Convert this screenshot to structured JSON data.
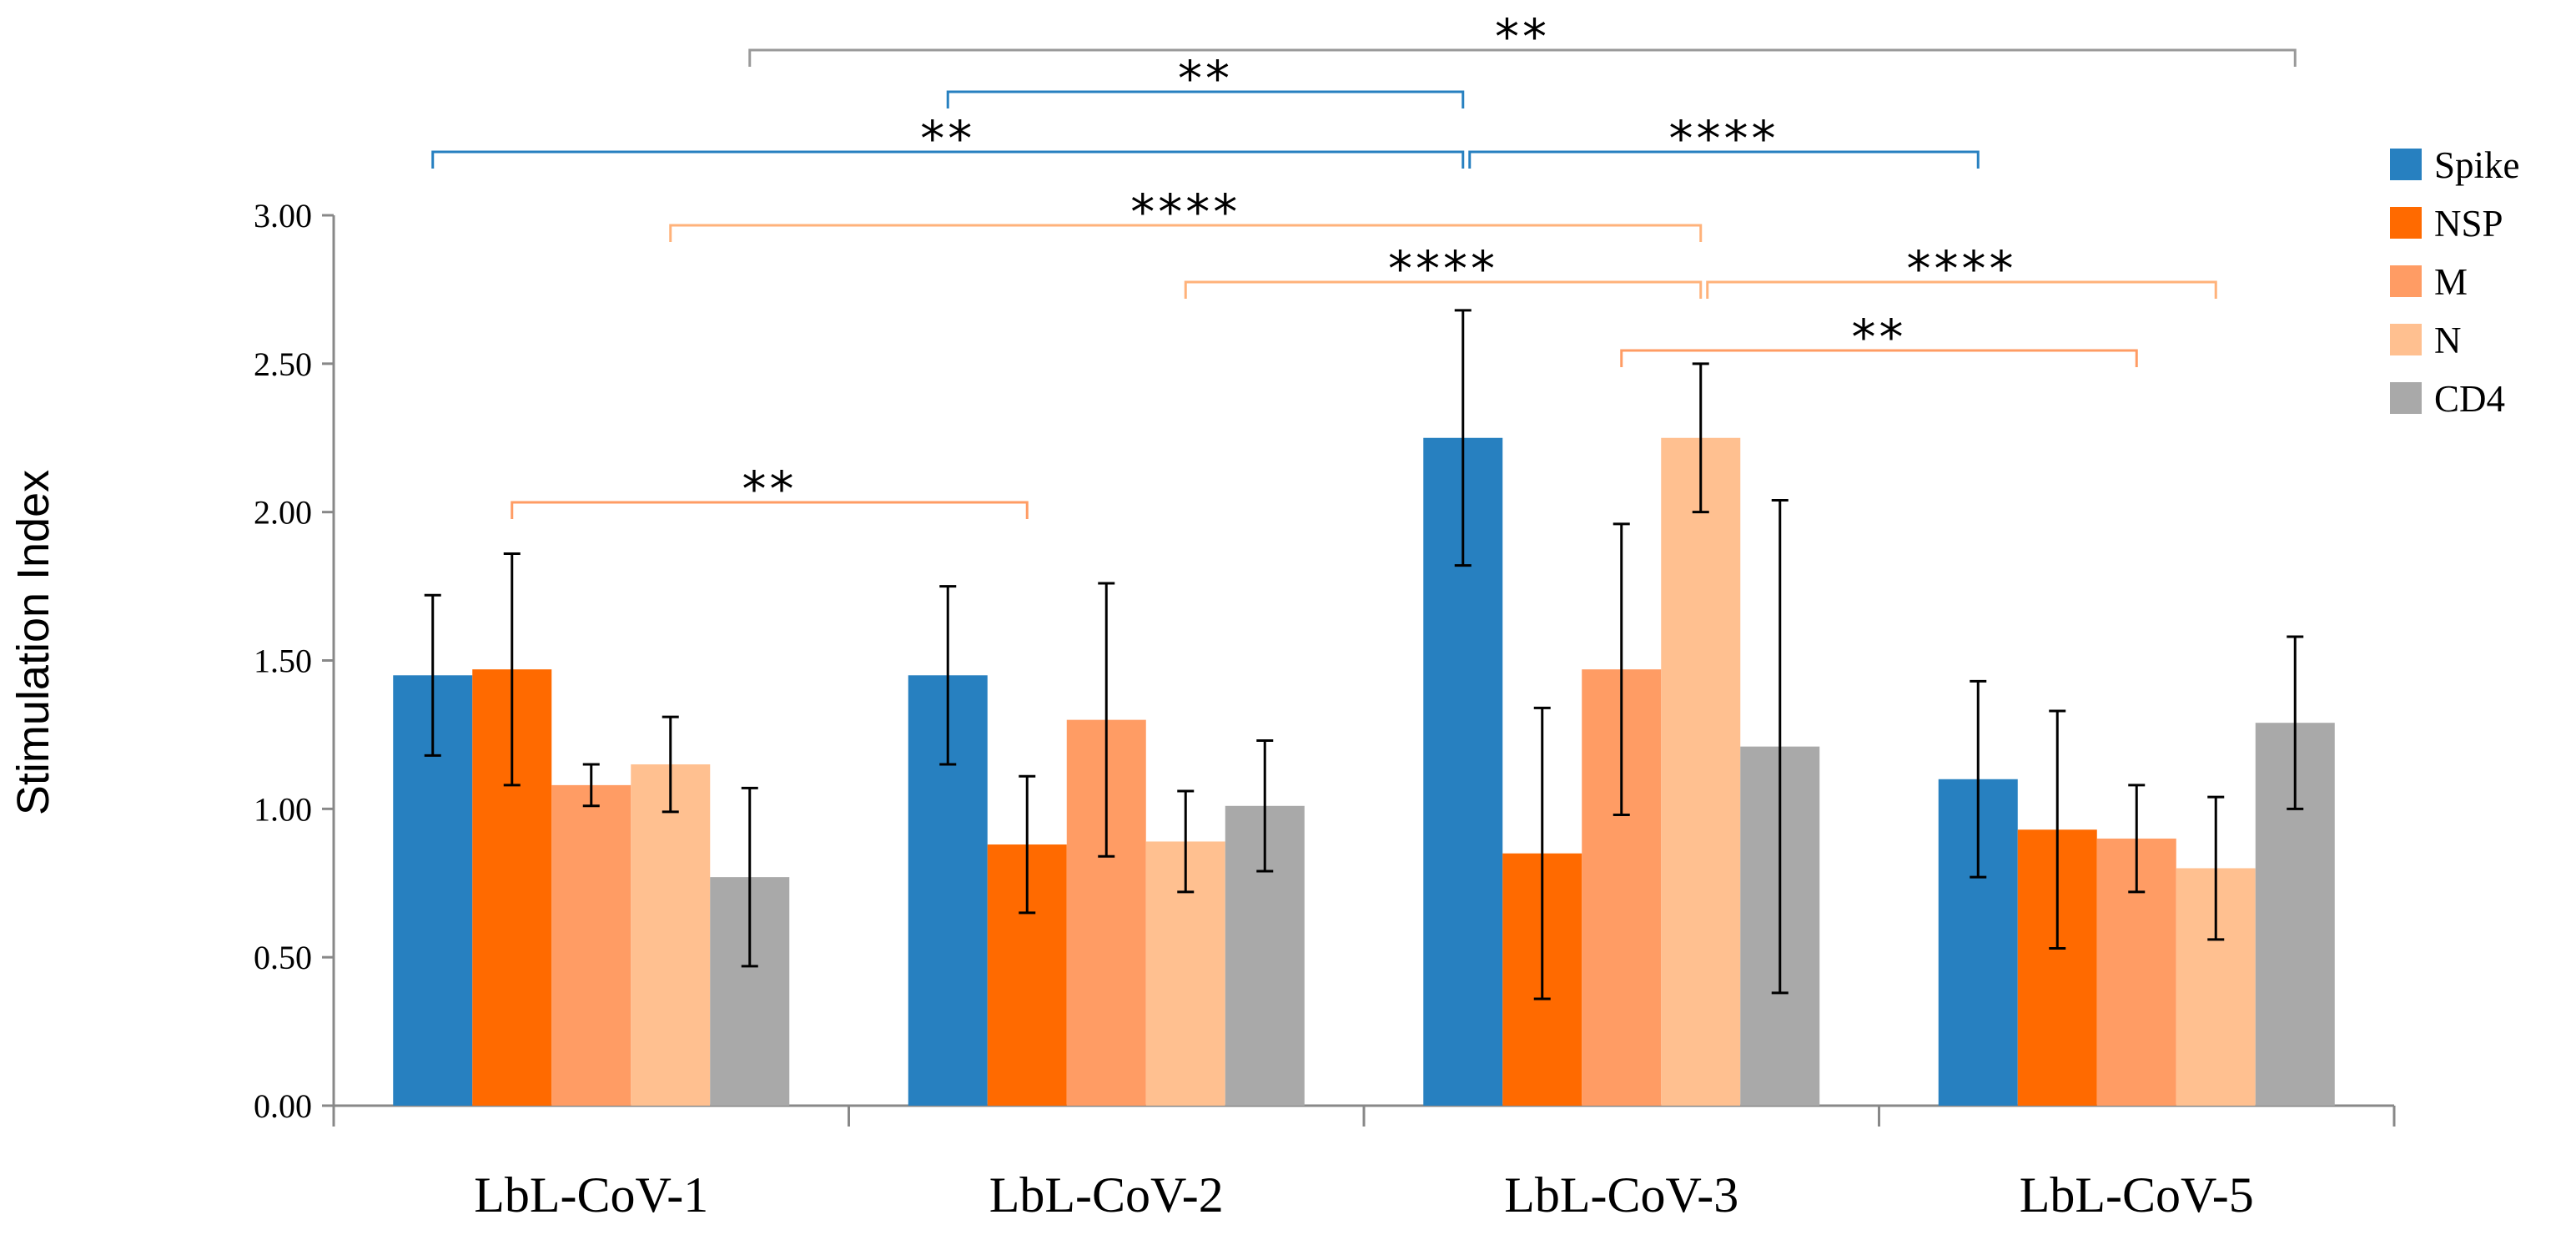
{
  "chart_data": {
    "type": "bar",
    "title": "",
    "xlabel": "",
    "ylabel": "Stimulation Index",
    "ylim": [
      0,
      3
    ],
    "yticks": [
      "0.00",
      "0.50",
      "1.00",
      "1.50",
      "2.00",
      "2.50",
      "3.00"
    ],
    "categories": [
      "LbL-CoV-1",
      "LbL-CoV-2",
      "LbL-CoV-3",
      "LbL-CoV-5"
    ],
    "legend_position": "top-right",
    "series": [
      {
        "name": "Spike",
        "color": "#2780c0",
        "values": [
          1.45,
          1.45,
          2.25,
          1.1
        ],
        "errors": [
          0.27,
          0.3,
          0.43,
          0.33
        ]
      },
      {
        "name": "NSP",
        "color": "#ff6a00",
        "values": [
          1.47,
          0.88,
          0.85,
          0.93
        ],
        "errors": [
          0.39,
          0.23,
          0.49,
          0.4
        ]
      },
      {
        "name": "M",
        "color": "#ff9c64",
        "values": [
          1.08,
          1.3,
          1.47,
          0.9
        ],
        "errors": [
          0.07,
          0.46,
          0.49,
          0.18
        ]
      },
      {
        "name": "N",
        "color": "#ffc090",
        "values": [
          1.15,
          0.89,
          2.25,
          0.8
        ],
        "errors": [
          0.16,
          0.17,
          0.25,
          0.24
        ]
      },
      {
        "name": "CD4",
        "color": "#a9a9a9",
        "values": [
          0.77,
          1.01,
          1.21,
          1.29
        ],
        "errors": [
          0.3,
          0.22,
          0.83,
          0.29
        ]
      }
    ],
    "significance": [
      {
        "label": "**",
        "color": "#999999",
        "from": [
          0,
          4
        ],
        "to": [
          3,
          4
        ]
      },
      {
        "label": "**",
        "color": "#2780c0",
        "from": [
          1,
          0
        ],
        "to": [
          2,
          0
        ]
      },
      {
        "label": "**",
        "color": "#2780c0",
        "from": [
          0,
          0
        ],
        "to": [
          2,
          0
        ]
      },
      {
        "label": "****",
        "color": "#2780c0",
        "from": [
          2,
          0
        ],
        "to": [
          3,
          0
        ]
      },
      {
        "label": "****",
        "color": "#ffb27a",
        "from": [
          0,
          3
        ],
        "to": [
          2,
          3
        ]
      },
      {
        "label": "****",
        "color": "#ffb27a",
        "from": [
          1,
          3
        ],
        "to": [
          2,
          3
        ]
      },
      {
        "label": "****",
        "color": "#ffb27a",
        "from": [
          2,
          3
        ],
        "to": [
          3,
          3
        ]
      },
      {
        "label": "**",
        "color": "#ff9c64",
        "from": [
          2,
          2
        ],
        "to": [
          3,
          2
        ]
      },
      {
        "label": "**",
        "color": "#ff9c64",
        "from": [
          0,
          1
        ],
        "to": [
          1,
          1
        ]
      }
    ]
  }
}
